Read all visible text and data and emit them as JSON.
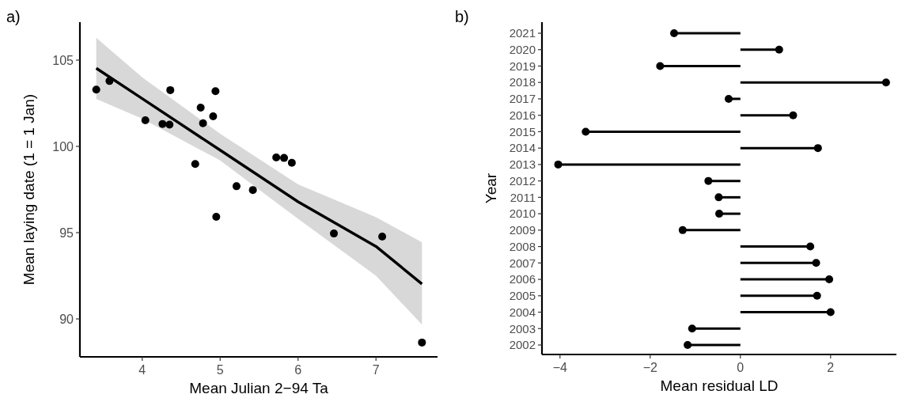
{
  "chart_data": [
    {
      "type": "scatter",
      "title": "a)",
      "xlabel": "Mean Julian 2−94 Ta",
      "ylabel": "Mean laying date (1 = 1 Jan)",
      "xlim": [
        3.2,
        7.79
      ],
      "ylim": [
        87.8,
        107.2
      ],
      "xticks": [
        4,
        5,
        6,
        7
      ],
      "yticks": [
        90,
        95,
        100,
        105
      ],
      "grid": false,
      "series": [
        {
          "type": "line",
          "color": "#000000",
          "x": [
            3.41,
            4,
            5,
            6,
            7,
            7.59
          ],
          "values": [
            104.53,
            102.77,
            99.78,
            96.79,
            94.2,
            92.03
          ],
          "lower": [
            102.75,
            101.6,
            99.18,
            95.8,
            92.5,
            89.67
          ],
          "upper": [
            106.29,
            104.0,
            100.73,
            97.8,
            95.9,
            94.44
          ]
        },
        {
          "type": "scatter",
          "marker": "circle",
          "color": "#000000",
          "x": [
            3.41,
            3.58,
            4.04,
            4.26,
            4.35,
            4.36,
            4.75,
            4.78,
            4.91,
            4.94,
            4.68,
            4.95,
            5.21,
            5.42,
            5.72,
            5.82,
            5.92,
            6.46,
            7.08,
            7.59
          ],
          "values": [
            103.29,
            103.79,
            101.51,
            101.3,
            101.26,
            103.26,
            102.25,
            101.34,
            101.74,
            103.2,
            98.98,
            95.92,
            97.69,
            97.47,
            99.36,
            99.33,
            99.05,
            94.95,
            94.77,
            88.63
          ]
        }
      ]
    },
    {
      "type": "lollipop",
      "orientation": "horizontal",
      "title": "b)",
      "xlabel": "Mean residual LD",
      "ylabel": "Year",
      "xlim": [
        -4.4,
        3.46
      ],
      "xticks": [
        {
          "value": -4,
          "label": "−4"
        },
        {
          "value": -2,
          "label": "−2"
        },
        {
          "value": 0,
          "label": "0"
        },
        {
          "value": 2,
          "label": "2"
        }
      ],
      "grid": false,
      "marker": "circle",
      "color": "#000000",
      "categories": [
        "2021",
        "2020",
        "2019",
        "2018",
        "2017",
        "2016",
        "2015",
        "2014",
        "2013",
        "2012",
        "2011",
        "2010",
        "2009",
        "2008",
        "2007",
        "2006",
        "2005",
        "2004",
        "2003",
        "2002"
      ],
      "values": [
        -1.47,
        0.86,
        -1.78,
        3.23,
        -0.26,
        1.17,
        -3.43,
        1.72,
        -4.04,
        -0.71,
        -0.48,
        -0.47,
        -1.28,
        1.55,
        1.68,
        1.97,
        1.7,
        2.0,
        -1.07,
        -1.17
      ]
    }
  ]
}
